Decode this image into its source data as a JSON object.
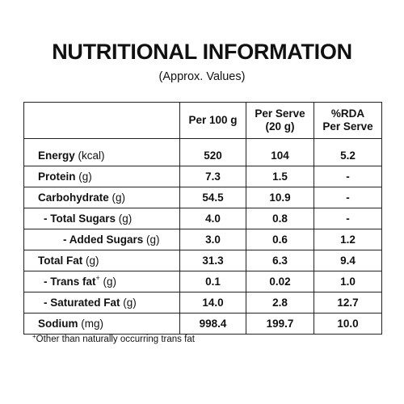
{
  "title": "NUTRITIONAL INFORMATION",
  "subtitle": "(Approx. Values)",
  "table": {
    "headers": {
      "col0": "",
      "col1": "Per 100 g",
      "col2_line1": "Per Serve",
      "col2_line2": "(20 g)",
      "col3_line1": "%RDA",
      "col3_line2": "Per Serve"
    },
    "rows": [
      {
        "name": "Energy",
        "unit": "(kcal)",
        "per100": "520",
        "perServe": "104",
        "rda": "5.2"
      },
      {
        "name": "Protein",
        "unit": "(g)",
        "per100": "7.3",
        "perServe": "1.5",
        "rda": "-"
      },
      {
        "name": "Carbohydrate",
        "unit": "(g)",
        "per100": "54.5",
        "perServe": "10.9",
        "rda": "-"
      },
      {
        "name": "- Total Sugars",
        "unit": "(g)",
        "per100": "4.0",
        "perServe": "0.8",
        "rda": "-"
      },
      {
        "name": "- Added Sugars",
        "unit": "(g)",
        "per100": "3.0",
        "perServe": "0.6",
        "rda": "1.2"
      },
      {
        "name": "Total Fat",
        "unit": "(g)",
        "per100": "31.3",
        "perServe": "6.3",
        "rda": "9.4"
      },
      {
        "name": "- Trans fat",
        "sup": "+",
        "unit": "(g)",
        "per100": "0.1",
        "perServe": "0.02",
        "rda": "1.0"
      },
      {
        "name": "- Saturated Fat",
        "unit": "(g)",
        "per100": "14.0",
        "perServe": "2.8",
        "rda": "12.7"
      },
      {
        "name": "Sodium",
        "unit": "(mg)",
        "per100": "998.4",
        "perServe": "199.7",
        "rda": "10.0"
      }
    ]
  },
  "footnote": {
    "sup": "+",
    "text": "Other than naturally occurring trans fat"
  }
}
